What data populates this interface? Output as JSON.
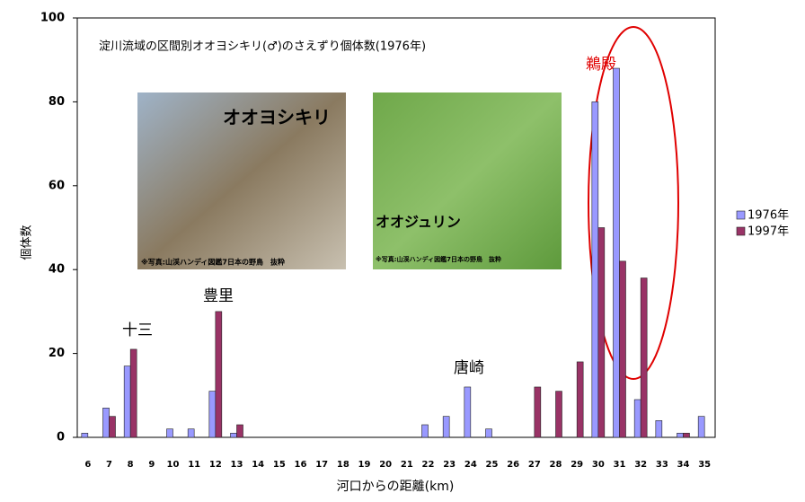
{
  "chart_data": {
    "type": "bar",
    "title": "淀川流域の区間別オオヨシキリ(♂)のさえずり個体数(1976年)",
    "x_label": "河口からの距離(km)",
    "y_label": "個体数",
    "categories": [
      "6",
      "7",
      "8",
      "9",
      "10",
      "11",
      "12",
      "13",
      "14",
      "15",
      "16",
      "17",
      "18",
      "19",
      "20",
      "21",
      "22",
      "23",
      "24",
      "25",
      "26",
      "27",
      "28",
      "29",
      "30",
      "31",
      "32",
      "33",
      "34",
      "35"
    ],
    "series": [
      {
        "name": "1976年",
        "color": "#9999ff",
        "values": [
          1,
          7,
          17,
          0,
          2,
          2,
          11,
          1,
          0,
          0,
          0,
          0,
          0,
          0,
          0,
          0,
          3,
          5,
          12,
          2,
          0,
          0,
          0,
          0,
          80,
          88,
          9,
          4,
          1,
          5
        ]
      },
      {
        "name": "1997年",
        "color": "#993366",
        "values": [
          0,
          5,
          21,
          0,
          0,
          0,
          30,
          3,
          0,
          0,
          0,
          0,
          0,
          0,
          0,
          0,
          0,
          0,
          0,
          0,
          0,
          12,
          11,
          18,
          50,
          42,
          38,
          0,
          1,
          0
        ]
      }
    ],
    "ylim": [
      0,
      100
    ],
    "yticks": [
      0,
      20,
      40,
      60,
      80,
      100
    ],
    "grid": false,
    "legend": "right",
    "annotations": [
      "十三",
      "豊里",
      "唐崎",
      "鵜殿"
    ],
    "photo_labels": [
      "オオヨシキリ",
      "オオジュリン"
    ],
    "photo_credits": [
      "※写真:山渓ハンディ図鑑7日本の野鳥　抜粋",
      "※写真:山渓ハンディ図鑑7日本の野鳥　抜粋"
    ]
  }
}
